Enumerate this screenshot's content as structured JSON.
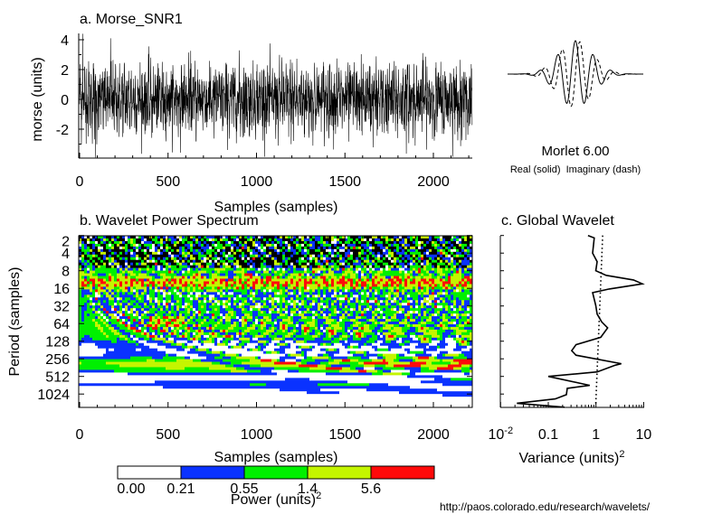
{
  "chart_data": [
    {
      "type": "line",
      "title": "a. Morse_SNR1",
      "xlabel": "Samples (samples)",
      "ylabel": "morse (units)",
      "xlim": [
        0,
        2220
      ],
      "ylim": [
        -3.9,
        4.4
      ],
      "xticks": [
        "0",
        "500",
        "1000",
        "1500",
        "2000"
      ],
      "yticks": [
        "4",
        "2",
        "0",
        "-2"
      ],
      "series_color": "#000000"
    },
    {
      "type": "heatmap",
      "title": "b. Wavelet Power Spectrum",
      "xlabel": "Samples (samples)",
      "ylabel": "Period (samples)",
      "xlim": [
        0,
        2220
      ],
      "xticks": [
        "0",
        "500",
        "1000",
        "1500",
        "2000"
      ],
      "yscale": "log2",
      "ylim": [
        2,
        1700
      ],
      "yticks": [
        "2",
        "4",
        "8",
        "16",
        "32",
        "64",
        "128",
        "256",
        "512",
        "1024"
      ],
      "colorbar": {
        "levels": [
          "0.00",
          "0.21",
          "0.55",
          "1.4",
          "5.6"
        ],
        "colors": [
          "#ffffff",
          "#0a32ff",
          "#00f000",
          "#c4f500",
          "#ff0a0a"
        ],
        "label": "Power (units)",
        "label_sup": "2"
      },
      "features": [
        {
          "period_range": [
            11,
            15
          ],
          "level": "5.6+",
          "samples": "most of record"
        },
        {
          "period_range": [
            220,
            330
          ],
          "samples": [
            1600,
            2220
          ],
          "level": "5.6+"
        },
        {
          "period_range": [
            55,
            70
          ],
          "samples": [
            400,
            600
          ],
          "level": "5.6+"
        }
      ]
    },
    {
      "type": "line",
      "title": "c. Global Wavelet",
      "xlabel": "Variance (units)",
      "xlabel_sup": "2",
      "xscale": "log",
      "xlim": [
        0.01,
        10
      ],
      "xticks": [
        {
          "base": "10",
          "sup": "-2"
        },
        {
          "base": "0.1",
          "sup": ""
        },
        {
          "base": "1",
          "sup": ""
        },
        {
          "base": "10",
          "sup": ""
        }
      ],
      "series": [
        {
          "style": "solid",
          "points": [
            {
              "variance": 0.68,
              "period": 2
            },
            {
              "variance": 0.92,
              "period": 2.2
            },
            {
              "variance": 0.85,
              "period": 4
            },
            {
              "variance": 1.06,
              "period": 5.6
            },
            {
              "variance": 0.99,
              "period": 8
            },
            {
              "variance": 1.64,
              "period": 9.6
            },
            {
              "variance": 6.1,
              "period": 11.5
            },
            {
              "variance": 9.4,
              "period": 13.4
            },
            {
              "variance": 1.9,
              "period": 16.4
            },
            {
              "variance": 0.85,
              "period": 19
            },
            {
              "variance": 0.99,
              "period": 31.6
            },
            {
              "variance": 1.06,
              "period": 44
            },
            {
              "variance": 1.32,
              "period": 60
            },
            {
              "variance": 1.76,
              "period": 76
            },
            {
              "variance": 1.26,
              "period": 110
            },
            {
              "variance": 0.38,
              "period": 147
            },
            {
              "variance": 0.31,
              "period": 186
            },
            {
              "variance": 0.38,
              "period": 222
            },
            {
              "variance": 3.4,
              "period": 310
            },
            {
              "variance": 2.54,
              "period": 330
            },
            {
              "variance": 1.06,
              "period": 429
            },
            {
              "variance": 0.1,
              "period": 512
            },
            {
              "variance": 0.74,
              "period": 729
            },
            {
              "variance": 0.25,
              "period": 818
            },
            {
              "variance": 0.24,
              "period": 1050
            },
            {
              "variance": 0.14,
              "period": 1240
            },
            {
              "variance": 0.022,
              "period": 1470
            },
            {
              "variance": 0.22,
              "period": 1720
            }
          ]
        },
        {
          "style": "dotted",
          "points": [
            {
              "variance": 1.38,
              "period": 2
            },
            {
              "variance": 0.99,
              "period": 1510
            }
          ]
        }
      ]
    },
    {
      "type": "line",
      "title": "Morlet 6.00",
      "subtitle": "Real (solid)  Imaginary (dash)",
      "omega0": 6
    }
  ],
  "footer": {
    "url": "http://paos.colorado.edu/research/wavelets/"
  }
}
